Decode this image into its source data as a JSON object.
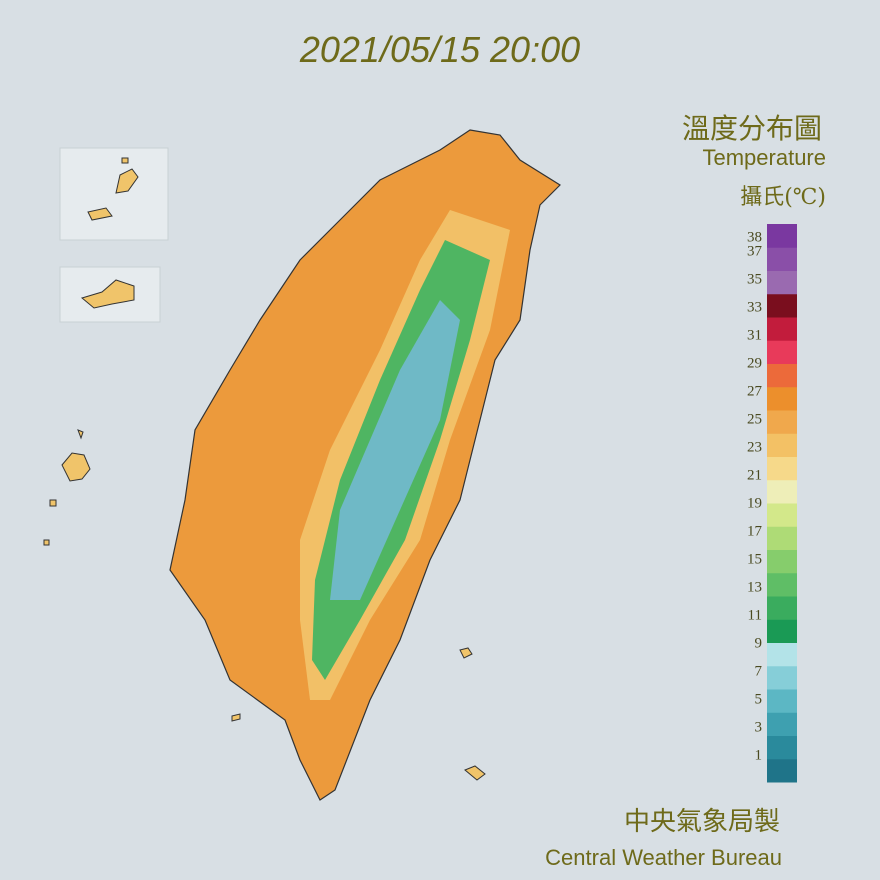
{
  "header": {
    "timestamp": "2021/05/15 20:00"
  },
  "legend": {
    "title_zh": "溫度分布圖",
    "title_en": "Temperature",
    "unit": "攝氏(℃)",
    "ticks": [
      38,
      37,
      35,
      33,
      31,
      29,
      27,
      25,
      23,
      21,
      19,
      17,
      15,
      13,
      11,
      9,
      7,
      5,
      3,
      1
    ],
    "colors": [
      "#1f7489",
      "#2a8a9c",
      "#3ea0b0",
      "#5cb7c4",
      "#86ced8",
      "#b3e3e8",
      "#1a9a55",
      "#3aac5e",
      "#5fbe66",
      "#86cd6c",
      "#aedb76",
      "#d3e88a",
      "#eeeeb8",
      "#f6d98a",
      "#f3c165",
      "#f0a84c",
      "#ec8f2c",
      "#ec6a3a",
      "#e83a5a",
      "#c21c3c",
      "#7a0e1e",
      "#9a6ab0",
      "#8a4fa8",
      "#7a38a0"
    ]
  },
  "footer": {
    "credit_zh": "中央氣象局製",
    "credit_en": "Central Weather Bureau"
  }
}
